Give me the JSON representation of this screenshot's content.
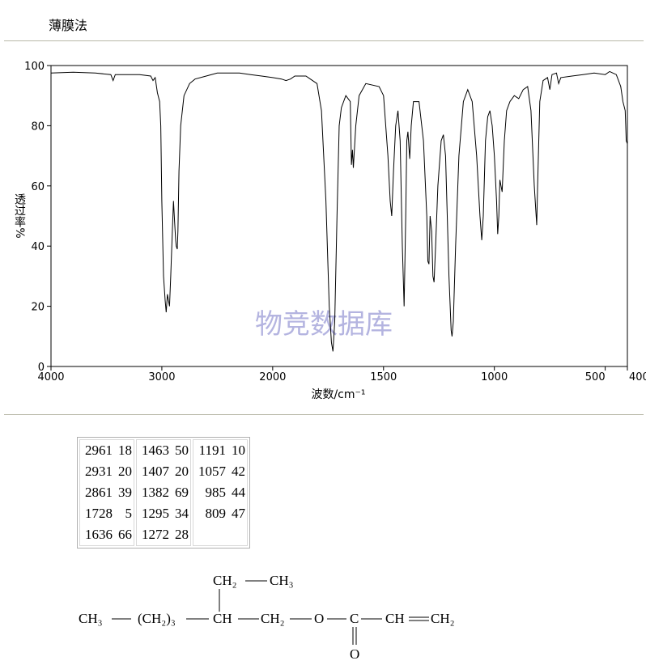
{
  "header": {
    "title": "薄膜法"
  },
  "chart_data": {
    "type": "line",
    "watermark": "物竞数据库",
    "xlabel": "波数/cm⁻¹",
    "ylabel": "透过率%",
    "xlim": [
      4000,
      400
    ],
    "xticks": [
      4000,
      3000,
      2000,
      1500,
      1000,
      500,
      400
    ],
    "ylim": [
      0,
      100
    ],
    "yticks": [
      0,
      20,
      40,
      60,
      80,
      100
    ],
    "color": "#000000",
    "x": [
      4000,
      3800,
      3600,
      3460,
      3440,
      3420,
      3200,
      3100,
      3080,
      3060,
      3040,
      3020,
      3010,
      3000,
      2985,
      2970,
      2961,
      2950,
      2940,
      2931,
      2920,
      2905,
      2895,
      2885,
      2875,
      2870,
      2861,
      2855,
      2845,
      2830,
      2800,
      2750,
      2700,
      2600,
      2500,
      2400,
      2300,
      2200,
      2100,
      2000,
      1960,
      1940,
      1920,
      1900,
      1850,
      1800,
      1780,
      1760,
      1745,
      1735,
      1728,
      1720,
      1710,
      1700,
      1690,
      1670,
      1650,
      1645,
      1640,
      1636,
      1625,
      1610,
      1580,
      1520,
      1500,
      1480,
      1470,
      1463,
      1455,
      1445,
      1435,
      1425,
      1415,
      1407,
      1400,
      1395,
      1390,
      1382,
      1375,
      1365,
      1340,
      1320,
      1305,
      1300,
      1295,
      1290,
      1283,
      1277,
      1272,
      1265,
      1255,
      1240,
      1230,
      1220,
      1205,
      1195,
      1191,
      1185,
      1175,
      1160,
      1140,
      1120,
      1100,
      1080,
      1065,
      1057,
      1050,
      1040,
      1030,
      1020,
      1010,
      1000,
      990,
      985,
      980,
      975,
      965,
      955,
      945,
      930,
      910,
      890,
      870,
      850,
      835,
      820,
      809,
      805,
      795,
      780,
      760,
      750,
      740,
      720,
      710,
      700,
      650,
      600,
      550,
      500,
      480,
      450,
      430,
      420,
      410,
      405,
      400
    ],
    "values": [
      97.5,
      97.8,
      97.5,
      97,
      95,
      97,
      97,
      96.5,
      95,
      96,
      91,
      88,
      80,
      55,
      30,
      22,
      18,
      24,
      22,
      20,
      30,
      45,
      55,
      48,
      42,
      40,
      39,
      45,
      65,
      80,
      90,
      94,
      95.5,
      96.5,
      97.5,
      97.5,
      97.5,
      97,
      96.5,
      96,
      95.5,
      95,
      95.5,
      96.5,
      96.5,
      94,
      85,
      55,
      20,
      8,
      5,
      15,
      50,
      80,
      86,
      90,
      88,
      67,
      72,
      66,
      80,
      90,
      94,
      93,
      90,
      70,
      55,
      50,
      65,
      80,
      85,
      75,
      40,
      20,
      50,
      75,
      78,
      69,
      80,
      88,
      88,
      75,
      50,
      35,
      34,
      50,
      45,
      30,
      28,
      40,
      60,
      75,
      77,
      70,
      30,
      12,
      10,
      15,
      40,
      70,
      88,
      92,
      88,
      70,
      50,
      42,
      50,
      75,
      83,
      85,
      80,
      70,
      55,
      44,
      50,
      62,
      58,
      75,
      85,
      88,
      90,
      89,
      92,
      93,
      85,
      60,
      47,
      60,
      88,
      95,
      96,
      92,
      97,
      97.5,
      94,
      96,
      96.5,
      97,
      97.5,
      97,
      98,
      97,
      93,
      88,
      85,
      75,
      74
    ]
  },
  "table": {
    "columns": [
      [
        [
          "2961",
          "18"
        ],
        [
          "2931",
          "20"
        ],
        [
          "2861",
          "39"
        ],
        [
          "1728",
          "5"
        ],
        [
          "1636",
          "66"
        ]
      ],
      [
        [
          "1463",
          "50"
        ],
        [
          "1407",
          "20"
        ],
        [
          "1382",
          "69"
        ],
        [
          "1295",
          "34"
        ],
        [
          "1272",
          "28"
        ]
      ],
      [
        [
          "1191",
          "10"
        ],
        [
          "1057",
          "42"
        ],
        [
          "985",
          "44"
        ],
        [
          "809",
          "47"
        ]
      ]
    ]
  },
  "structure": {
    "atoms": [
      "CH₃",
      "(CH₂)₃",
      "CH",
      "CH₂",
      "O",
      "C",
      "CH",
      "CH₂",
      "CH₂",
      "CH₃",
      "O"
    ]
  }
}
